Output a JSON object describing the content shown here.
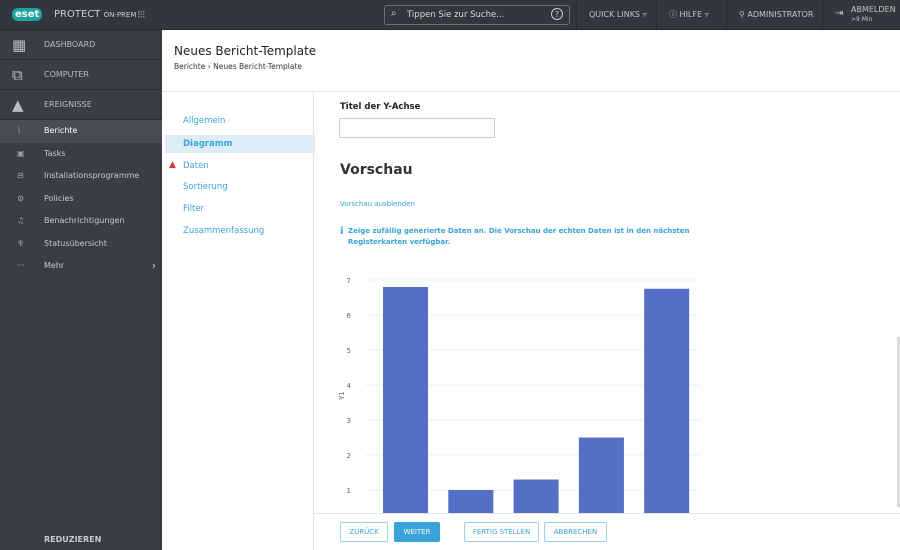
{
  "topbar": {
    "logo": "eset",
    "product": "PROTECT",
    "product_suffix": "ON-PREM",
    "search_placeholder": "Tippen Sie zur Suche...",
    "quick_links": "QUICK LINKS",
    "help": "HILFE",
    "user": "ADMINISTRATOR",
    "logout": "ABMELDEN",
    "logout_time": ">9 Min"
  },
  "sidebar": {
    "main": [
      {
        "label": "DASHBOARD",
        "icon": "dashboard-icon"
      },
      {
        "label": "COMPUTER",
        "icon": "computer-icon"
      },
      {
        "label": "EREIGNISSE",
        "icon": "warning-icon"
      }
    ],
    "items": [
      {
        "label": "Berichte",
        "active": true
      },
      {
        "label": "Tasks"
      },
      {
        "label": "Installationsprogramme"
      },
      {
        "label": "Policies"
      },
      {
        "label": "Benachrichtigungen"
      },
      {
        "label": "Statusübersicht"
      },
      {
        "label": "Mehr"
      }
    ],
    "collapse": "REDUZIEREN"
  },
  "header": {
    "title": "Neues Bericht-Template",
    "breadcrumb": [
      "Berichte",
      "Neues Bericht-Template"
    ]
  },
  "wizard": {
    "steps": [
      {
        "label": "Allgemein"
      },
      {
        "label": "Diagramm",
        "active": true
      },
      {
        "label": "Daten",
        "warning": true
      },
      {
        "label": "Sortierung"
      },
      {
        "label": "Filter"
      },
      {
        "label": "Zusammenfassung"
      }
    ]
  },
  "form": {
    "y_axis_title_label": "Titel der Y-Achse",
    "y_axis_title_value": "",
    "preview_heading": "Vorschau",
    "hide_preview": "Vorschau ausblenden",
    "info": "Zeige zufällig generierte Daten an. Die Vorschau der echten Daten ist in den nächsten Registerkarten verfügbar."
  },
  "chart_data": {
    "type": "bar",
    "ylabel": "Y1",
    "yticks": [
      1,
      2,
      3,
      4,
      5,
      6,
      7
    ],
    "ylim": [
      0,
      7
    ],
    "grid": true,
    "values": [
      6.8,
      1.0,
      1.3,
      2.5,
      6.75
    ],
    "color": "#5470c6"
  },
  "footer": {
    "back": "ZURÜCK",
    "next": "WEITER",
    "finish": "FERTIG STELLEN",
    "cancel": "ABBRECHEN"
  }
}
